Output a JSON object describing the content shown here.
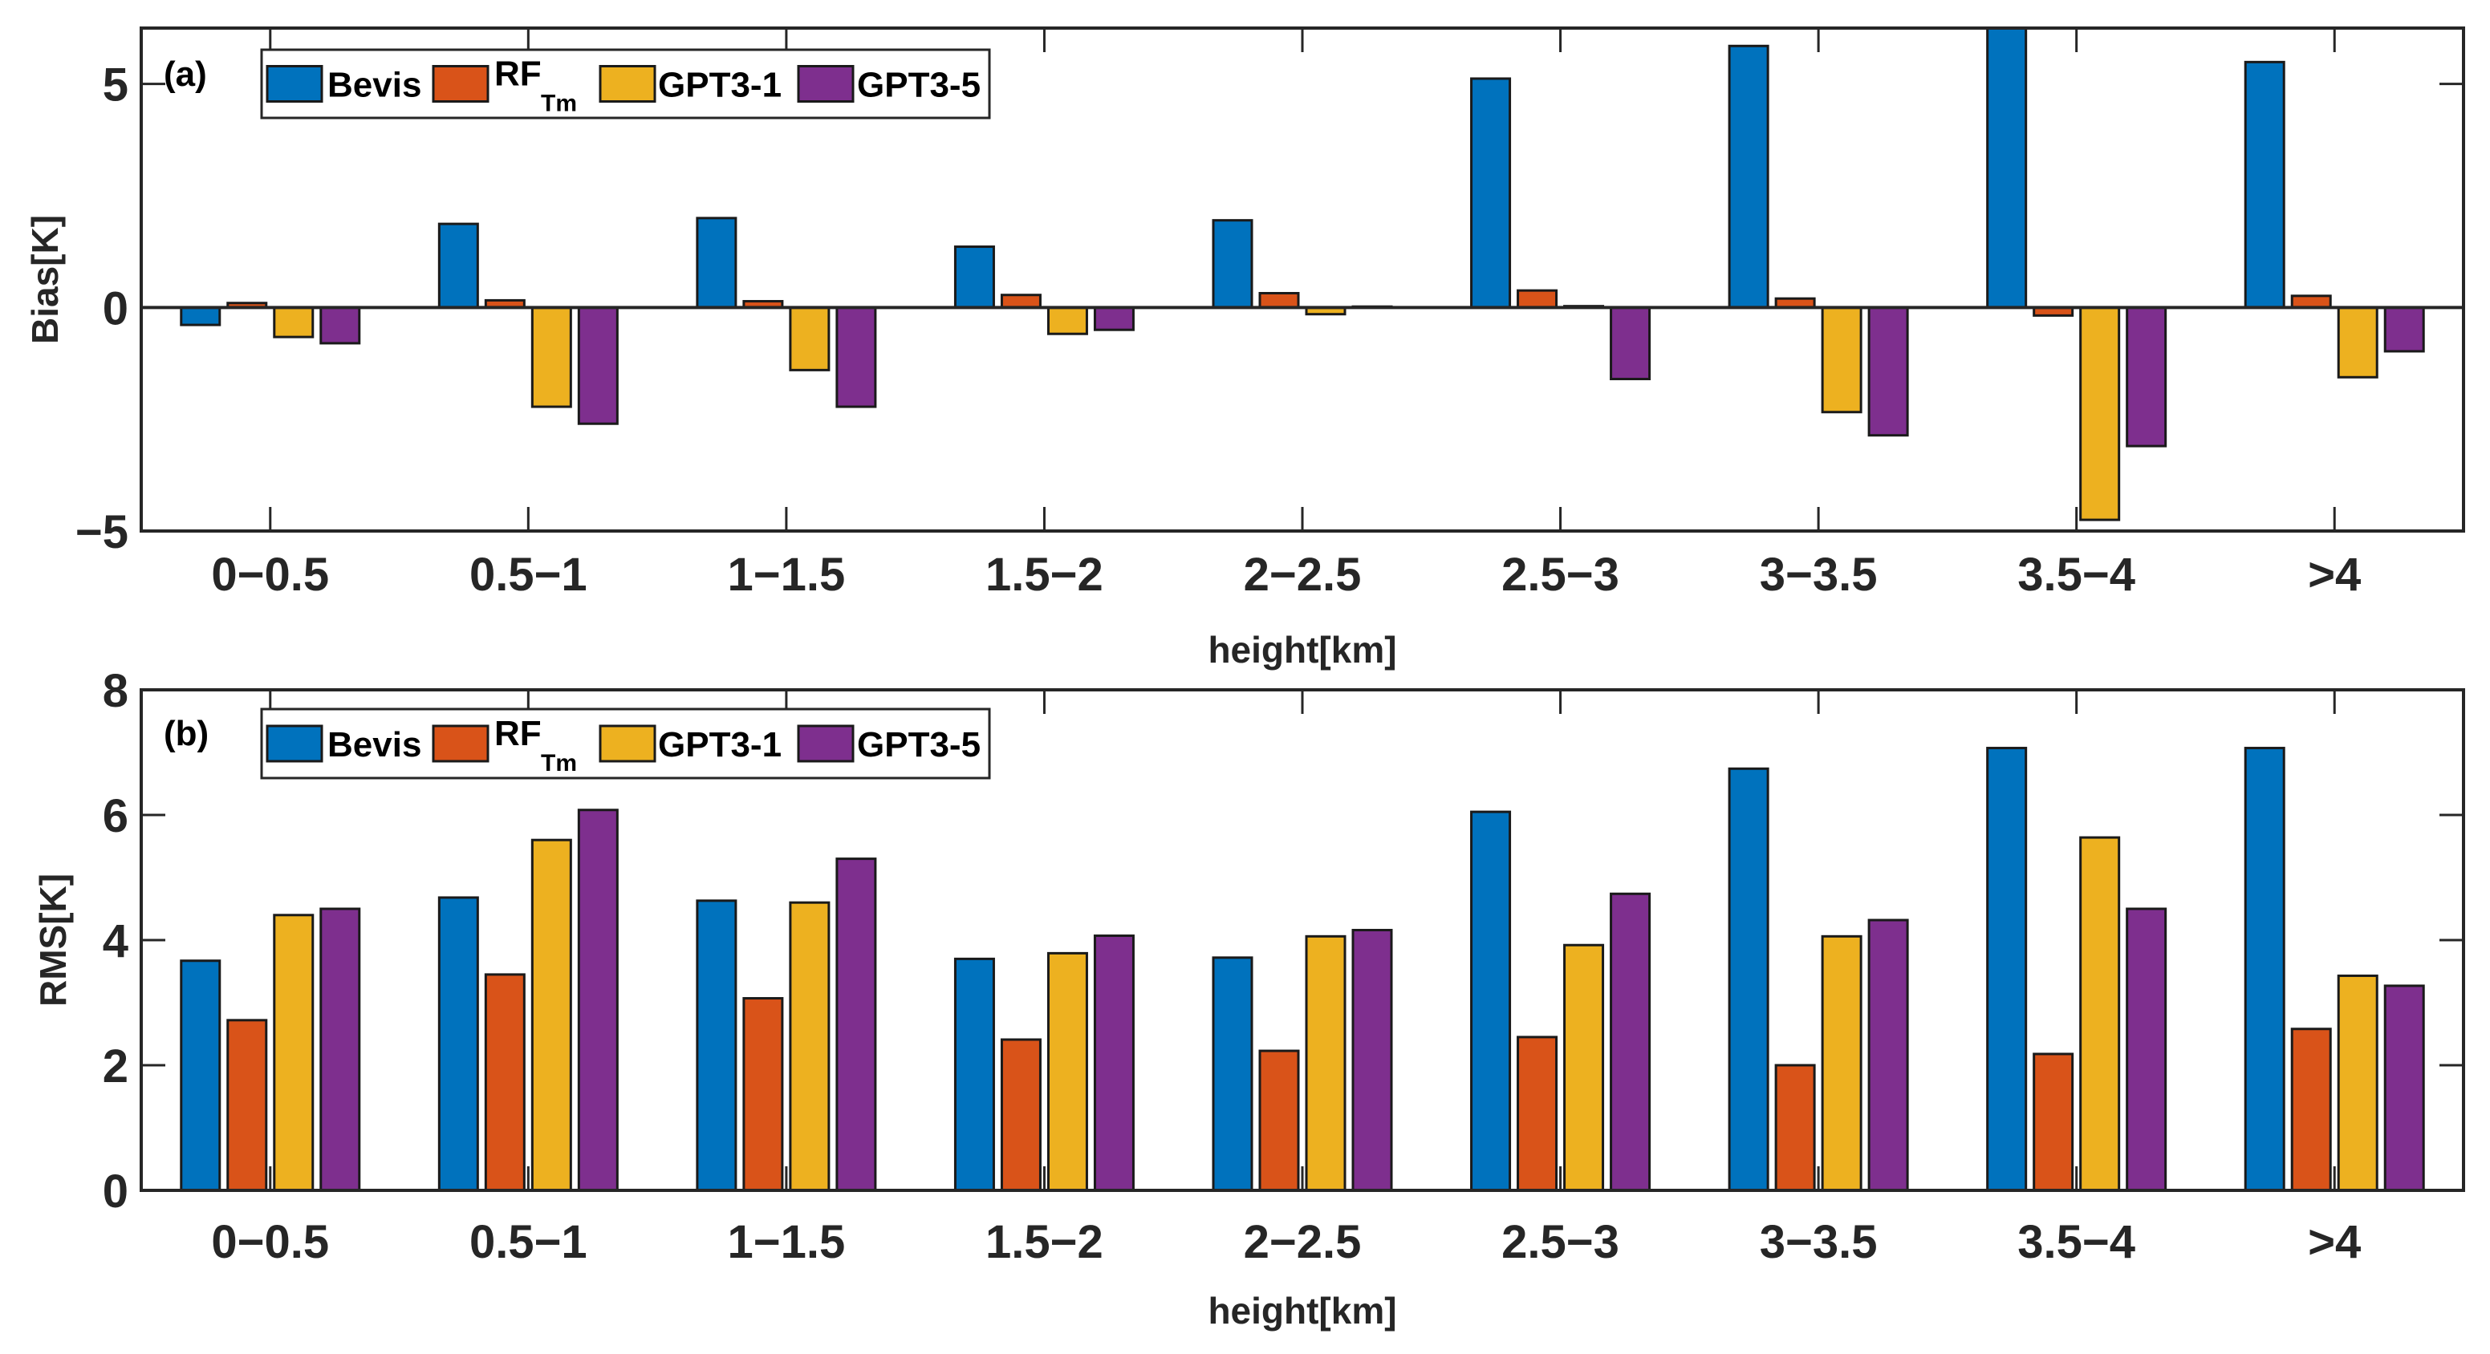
{
  "chart_data": [
    {
      "type": "bar",
      "panel_label": "(a)",
      "xlabel": "height[km]",
      "ylabel": "Bias[K]",
      "ylim": [
        -5,
        6.25
      ],
      "yticks": [
        -5,
        0,
        5
      ],
      "ytick_labels": [
        "−5",
        "0",
        "5"
      ],
      "categories": [
        "0−0.5",
        "0.5−1",
        "1−1.5",
        "1.5−2",
        "2−2.5",
        "2.5−3",
        "3−3.5",
        "3.5−4",
        ">4"
      ],
      "legend": {
        "placement": "top-left",
        "entries": [
          "Bevis",
          "RF",
          "GPT3-1",
          "GPT3-5"
        ],
        "rf_subscript": "Tm"
      },
      "series": [
        {
          "name": "Bevis",
          "color": "#0072BD",
          "values": [
            -0.39,
            1.87,
            2.0,
            1.36,
            1.95,
            5.12,
            5.85,
            6.6,
            5.49
          ]
        },
        {
          "name": "RF_Tm",
          "color": "#D95319",
          "values": [
            0.1,
            0.16,
            0.14,
            0.28,
            0.32,
            0.38,
            0.2,
            -0.18,
            0.26
          ]
        },
        {
          "name": "GPT3-1",
          "color": "#EDB120",
          "values": [
            -0.66,
            -2.22,
            -1.4,
            -0.59,
            -0.15,
            0.03,
            -2.34,
            -4.75,
            -1.56
          ]
        },
        {
          "name": "GPT3-5",
          "color": "#7E2F8E",
          "values": [
            -0.8,
            -2.6,
            -2.22,
            -0.5,
            0.02,
            -1.6,
            -2.86,
            -3.1,
            -0.98
          ]
        }
      ]
    },
    {
      "type": "bar",
      "panel_label": "(b)",
      "xlabel": "height[km]",
      "ylabel": "RMS[K]",
      "ylim": [
        0,
        8
      ],
      "yticks": [
        0,
        2,
        4,
        6,
        8
      ],
      "ytick_labels": [
        "0",
        "2",
        "4",
        "6",
        "8"
      ],
      "categories": [
        "0−0.5",
        "0.5−1",
        "1−1.5",
        "1.5−2",
        "2−2.5",
        "2.5−3",
        "3−3.5",
        "3.5−4",
        ">4"
      ],
      "legend": {
        "placement": "top-left",
        "entries": [
          "Bevis",
          "RF",
          "GPT3-1",
          "GPT3-5"
        ],
        "rf_subscript": "Tm"
      },
      "series": [
        {
          "name": "Bevis",
          "color": "#0072BD",
          "values": [
            3.67,
            4.68,
            4.63,
            3.7,
            3.72,
            6.05,
            6.74,
            7.07,
            7.07
          ]
        },
        {
          "name": "RF_Tm",
          "color": "#D95319",
          "values": [
            2.72,
            3.45,
            3.07,
            2.41,
            2.23,
            2.45,
            2.0,
            2.18,
            2.58
          ]
        },
        {
          "name": "GPT3-1",
          "color": "#EDB120",
          "values": [
            4.4,
            5.6,
            4.6,
            3.79,
            4.06,
            3.92,
            4.06,
            5.64,
            3.43
          ]
        },
        {
          "name": "GPT3-5",
          "color": "#7E2F8E",
          "values": [
            4.5,
            6.08,
            5.3,
            4.07,
            4.16,
            4.74,
            4.32,
            4.5,
            3.27
          ]
        }
      ]
    }
  ]
}
